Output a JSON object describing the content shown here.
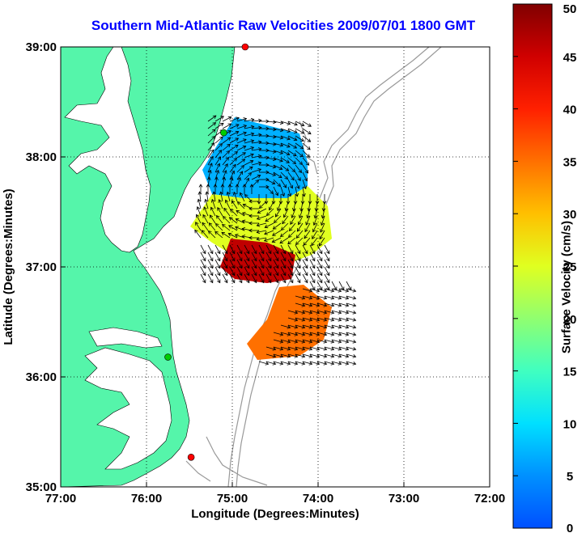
{
  "title": "Southern Mid-Atlantic Raw Velocities 2009/07/01 1800 GMT",
  "x_axis": {
    "label": "Longitude (Degrees:Minutes)",
    "ticks": [
      "77:00",
      "76:00",
      "75:00",
      "74:00",
      "73:00",
      "72:00"
    ]
  },
  "y_axis": {
    "label": "Latitude (Degrees:Minutes)",
    "ticks": [
      "39:00",
      "38:00",
      "37:00",
      "36:00",
      "35:00"
    ]
  },
  "colorbar": {
    "label": "Surface Velocity (cm/s)",
    "ticks": [
      "50",
      "45",
      "40",
      "35",
      "30",
      "25",
      "20",
      "15",
      "10",
      "5",
      "0"
    ],
    "min": 0,
    "max": 50
  },
  "colors": {
    "land": "#55f5aa",
    "title": "#0000ff",
    "bathymetry": "#999999"
  },
  "stations": [
    {
      "lon": -74.85,
      "lat": 39.0,
      "color": "#ff0000"
    },
    {
      "lon": -75.1,
      "lat": 38.22,
      "color": "#00cc00"
    },
    {
      "lon": -75.75,
      "lat": 36.18,
      "color": "#00cc00"
    },
    {
      "lon": -75.48,
      "lat": 35.27,
      "color": "#ff0000"
    }
  ]
}
